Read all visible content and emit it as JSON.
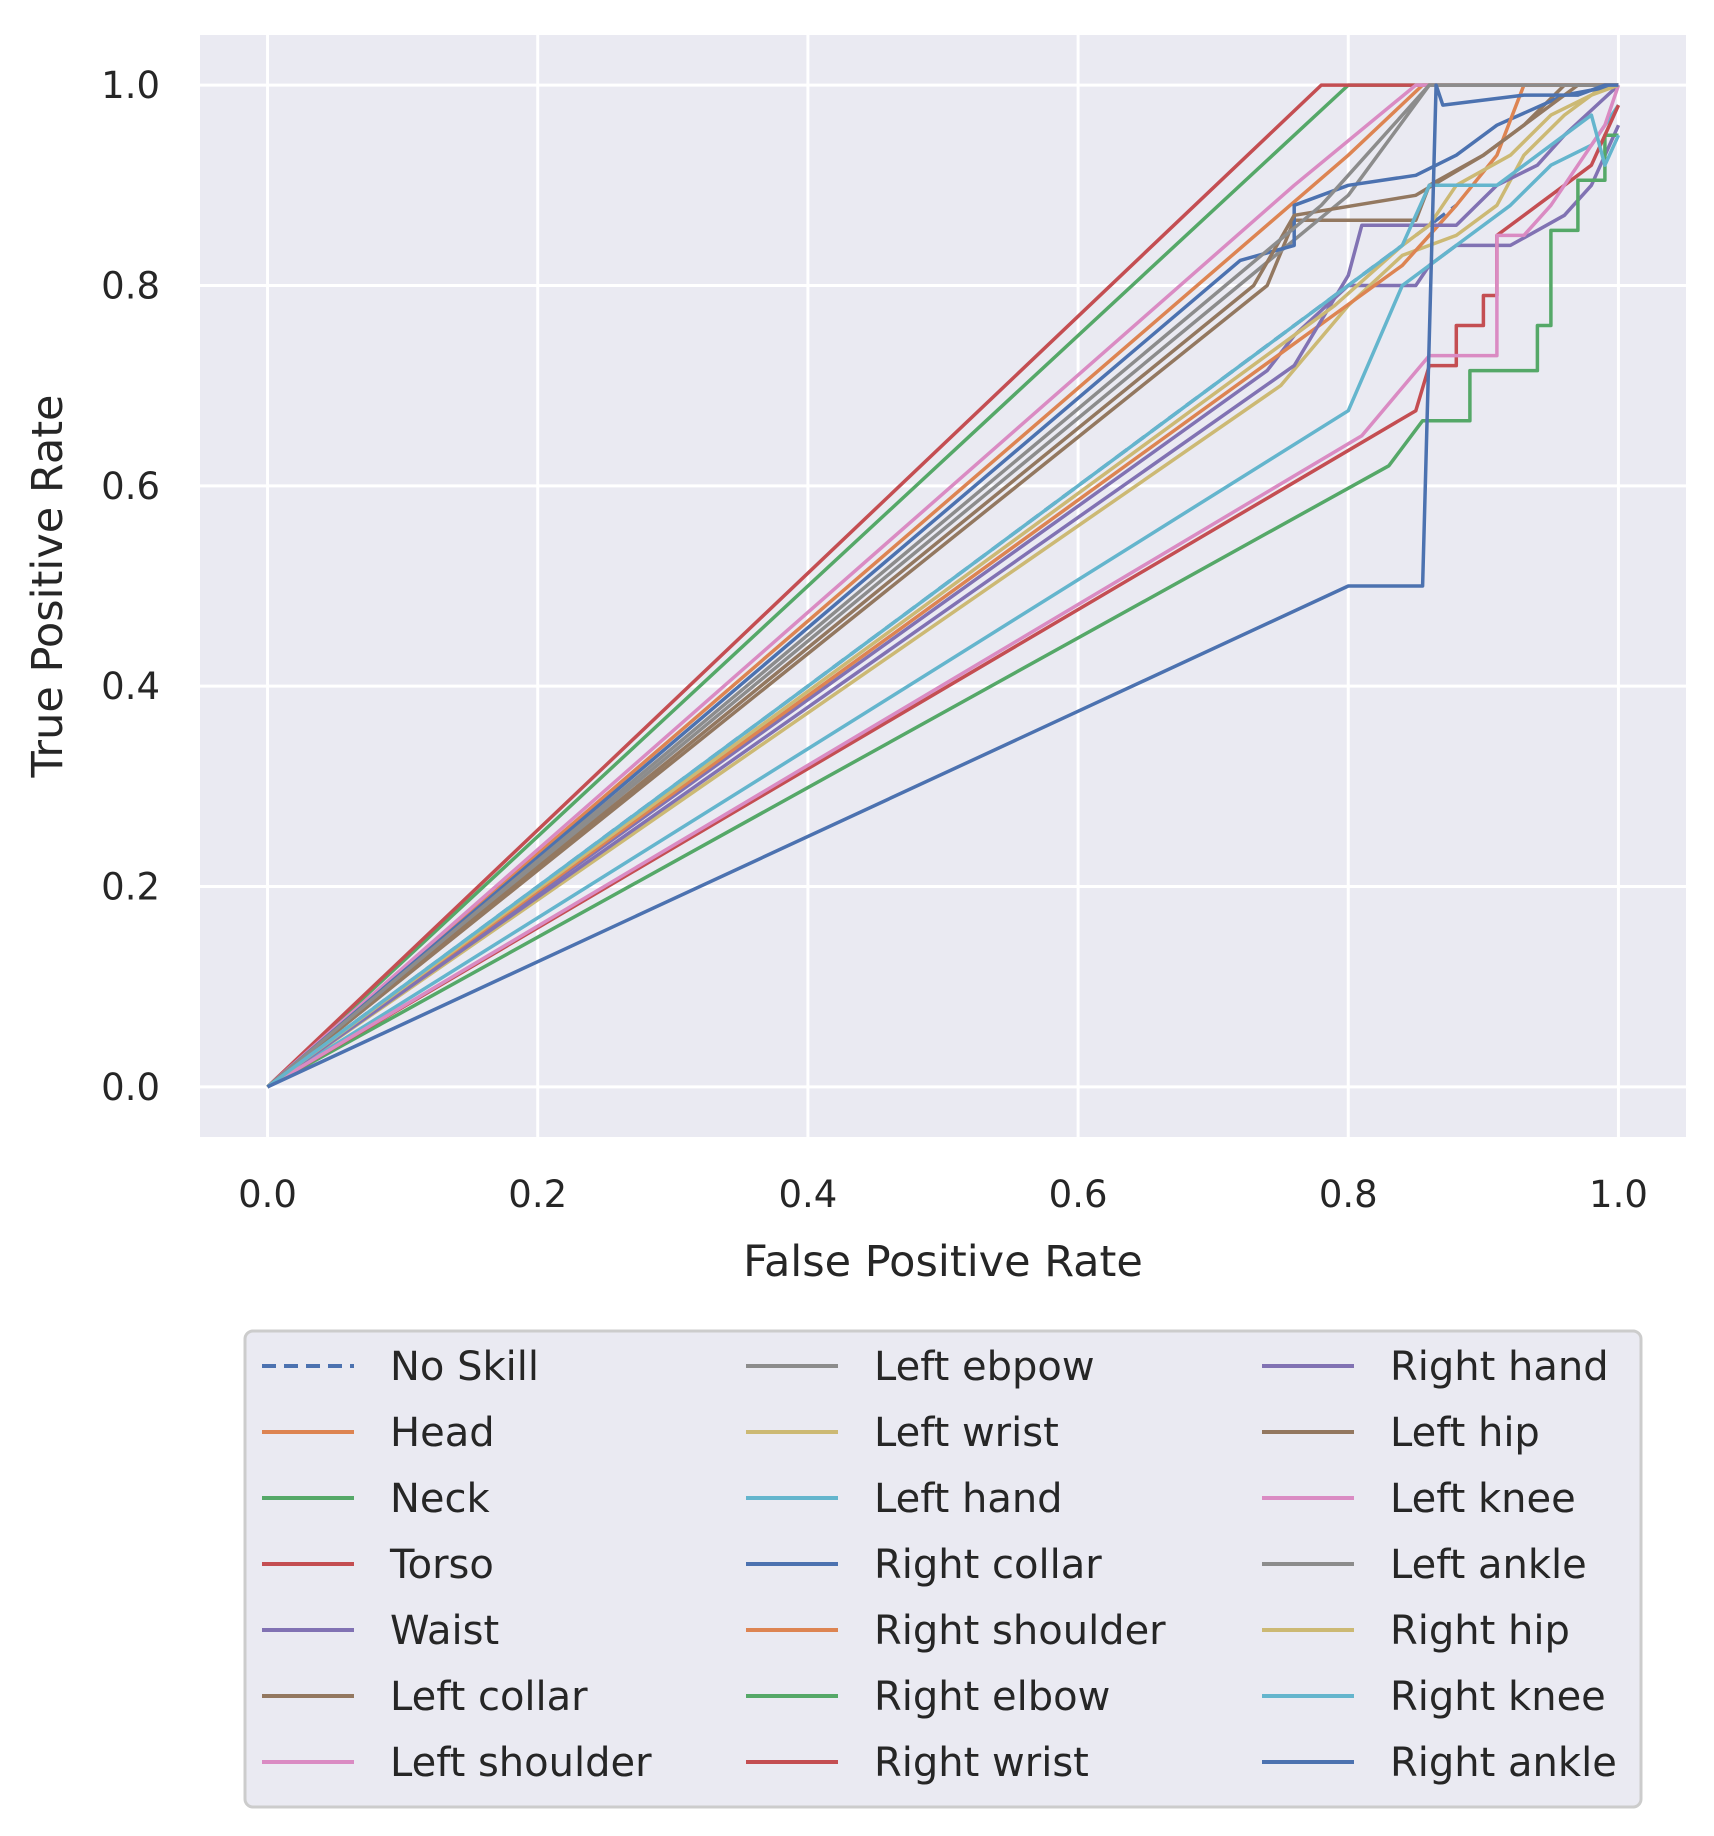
{
  "chart_data": {
    "type": "line",
    "title": "",
    "xlabel": "False Positive Rate",
    "ylabel": "True Positive Rate",
    "xlim": [
      -0.05,
      1.05
    ],
    "ylim": [
      -0.05,
      1.05
    ],
    "xticks": [
      "0.0",
      "0.2",
      "0.4",
      "0.6",
      "0.8",
      "1.0"
    ],
    "yticks": [
      "0.0",
      "0.2",
      "0.4",
      "0.6",
      "0.8",
      "1.0"
    ],
    "grid": true,
    "legend_position": "below plot, 3 columns",
    "series": [
      {
        "name": "No Skill",
        "color": "#4c72b0",
        "dashed": true,
        "points": [
          [
            0,
            0
          ],
          [
            0.88,
            0.88
          ]
        ]
      },
      {
        "name": "Head",
        "color": "#dd8452",
        "points": [
          [
            0,
            0
          ],
          [
            0.8,
            0.93
          ],
          [
            0.855,
            1.0
          ],
          [
            1.0,
            1.0
          ]
        ]
      },
      {
        "name": "Neck",
        "color": "#55a868",
        "points": [
          [
            0,
            0
          ],
          [
            0.8,
            1.0
          ],
          [
            1.0,
            1.0
          ]
        ]
      },
      {
        "name": "Torso",
        "color": "#c44e52",
        "points": [
          [
            0,
            0
          ],
          [
            0.78,
            1.0
          ],
          [
            1.0,
            1.0
          ]
        ]
      },
      {
        "name": "Waist",
        "color": "#8172b3",
        "points": [
          [
            0,
            0
          ],
          [
            0.74,
            0.715
          ],
          [
            0.76,
            0.75
          ],
          [
            0.8,
            0.8
          ],
          [
            0.85,
            0.8
          ],
          [
            0.86,
            0.82
          ],
          [
            0.88,
            0.84
          ],
          [
            0.92,
            0.84
          ],
          [
            0.96,
            0.87
          ],
          [
            0.98,
            0.9
          ],
          [
            1.0,
            0.96
          ]
        ]
      },
      {
        "name": "Left collar",
        "color": "#937860",
        "points": [
          [
            0,
            0
          ],
          [
            0.74,
            0.8
          ],
          [
            0.76,
            0.865
          ],
          [
            0.85,
            0.865
          ],
          [
            0.86,
            0.9
          ],
          [
            0.9,
            0.93
          ],
          [
            0.93,
            0.96
          ],
          [
            0.96,
            1.0
          ],
          [
            1.0,
            1.0
          ]
        ]
      },
      {
        "name": "Left shoulder",
        "color": "#da8bc3",
        "points": [
          [
            0,
            0
          ],
          [
            0.76,
            0.9
          ],
          [
            0.85,
            1.0
          ],
          [
            1.0,
            1.0
          ]
        ]
      },
      {
        "name": "Left ebpow",
        "color": "#8c8c8c",
        "points": [
          [
            0,
            0
          ],
          [
            0.8,
            0.89
          ],
          [
            0.86,
            1.0
          ],
          [
            1.0,
            1.0
          ]
        ]
      },
      {
        "name": "Left wrist",
        "color": "#ccb974",
        "points": [
          [
            0,
            0
          ],
          [
            0.75,
            0.7
          ],
          [
            0.8,
            0.78
          ],
          [
            0.84,
            0.83
          ],
          [
            0.88,
            0.85
          ],
          [
            0.91,
            0.88
          ],
          [
            0.93,
            0.93
          ],
          [
            0.96,
            0.97
          ],
          [
            0.99,
            1.0
          ],
          [
            1.0,
            1.0
          ]
        ]
      },
      {
        "name": "Left hand",
        "color": "#64b5cd",
        "points": [
          [
            0,
            0
          ],
          [
            0.8,
            0.675
          ],
          [
            0.84,
            0.8
          ],
          [
            0.88,
            0.84
          ],
          [
            0.92,
            0.88
          ],
          [
            0.95,
            0.92
          ],
          [
            0.98,
            0.94
          ],
          [
            1.0,
            0.98
          ]
        ]
      },
      {
        "name": "Right collar",
        "color": "#4c72b0",
        "points": [
          [
            0,
            0
          ],
          [
            0.72,
            0.825
          ],
          [
            0.76,
            0.84
          ],
          [
            0.76,
            0.88
          ],
          [
            0.8,
            0.9
          ],
          [
            0.85,
            0.91
          ],
          [
            0.88,
            0.93
          ],
          [
            0.91,
            0.96
          ],
          [
            0.96,
            0.99
          ],
          [
            1.0,
            1.0
          ]
        ]
      },
      {
        "name": "Right shoulder",
        "color": "#dd8452",
        "points": [
          [
            0,
            0
          ],
          [
            0.84,
            0.82
          ],
          [
            0.86,
            0.85
          ],
          [
            0.88,
            0.88
          ],
          [
            0.91,
            0.93
          ],
          [
            0.93,
            1.0
          ],
          [
            1.0,
            1.0
          ]
        ]
      },
      {
        "name": "Right elbow",
        "color": "#55a868",
        "points": [
          [
            0,
            0
          ],
          [
            0.83,
            0.62
          ],
          [
            0.855,
            0.665
          ],
          [
            0.89,
            0.665
          ],
          [
            0.89,
            0.715
          ],
          [
            0.94,
            0.715
          ],
          [
            0.94,
            0.76
          ],
          [
            0.95,
            0.76
          ],
          [
            0.95,
            0.855
          ],
          [
            0.97,
            0.855
          ],
          [
            0.97,
            0.905
          ],
          [
            0.99,
            0.905
          ],
          [
            0.99,
            0.95
          ],
          [
            1.0,
            0.95
          ]
        ]
      },
      {
        "name": "Right wrist",
        "color": "#c44e52",
        "points": [
          [
            0,
            0
          ],
          [
            0.85,
            0.675
          ],
          [
            0.86,
            0.72
          ],
          [
            0.88,
            0.72
          ],
          [
            0.88,
            0.76
          ],
          [
            0.9,
            0.76
          ],
          [
            0.9,
            0.79
          ],
          [
            0.91,
            0.79
          ],
          [
            0.91,
            0.85
          ],
          [
            0.94,
            0.88
          ],
          [
            0.96,
            0.9
          ],
          [
            0.98,
            0.92
          ],
          [
            1.0,
            0.98
          ]
        ]
      },
      {
        "name": "Right hand",
        "color": "#8172b3",
        "points": [
          [
            0,
            0
          ],
          [
            0.76,
            0.72
          ],
          [
            0.8,
            0.81
          ],
          [
            0.81,
            0.86
          ],
          [
            0.86,
            0.86
          ],
          [
            0.88,
            0.86
          ],
          [
            0.91,
            0.9
          ],
          [
            0.94,
            0.92
          ],
          [
            0.96,
            0.95
          ],
          [
            1.0,
            1.0
          ]
        ]
      },
      {
        "name": "Left hip",
        "color": "#937860",
        "points": [
          [
            0,
            0
          ],
          [
            0.73,
            0.8
          ],
          [
            0.76,
            0.87
          ],
          [
            0.85,
            0.89
          ],
          [
            0.9,
            0.93
          ],
          [
            0.94,
            0.97
          ],
          [
            0.97,
            1.0
          ],
          [
            1.0,
            1.0
          ]
        ]
      },
      {
        "name": "Left knee",
        "color": "#da8bc3",
        "points": [
          [
            0,
            0
          ],
          [
            0.81,
            0.65
          ],
          [
            0.86,
            0.73
          ],
          [
            0.91,
            0.73
          ],
          [
            0.91,
            0.85
          ],
          [
            0.93,
            0.85
          ],
          [
            0.95,
            0.88
          ],
          [
            0.97,
            0.92
          ],
          [
            0.99,
            0.96
          ],
          [
            1.0,
            1.0
          ]
        ]
      },
      {
        "name": "Left ankle",
        "color": "#8c8c8c",
        "points": [
          [
            0,
            0
          ],
          [
            0.78,
            0.88
          ],
          [
            0.86,
            1.0
          ],
          [
            1.0,
            1.0
          ]
        ]
      },
      {
        "name": "Right hip",
        "color": "#ccb974",
        "points": [
          [
            0,
            0
          ],
          [
            0.79,
            0.78
          ],
          [
            0.84,
            0.84
          ],
          [
            0.86,
            0.86
          ],
          [
            0.88,
            0.9
          ],
          [
            0.92,
            0.93
          ],
          [
            0.95,
            0.97
          ],
          [
            0.98,
            0.99
          ],
          [
            1.0,
            1.0
          ]
        ]
      },
      {
        "name": "Right knee",
        "color": "#64b5cd",
        "points": [
          [
            0,
            0
          ],
          [
            0.84,
            0.84
          ],
          [
            0.86,
            0.9
          ],
          [
            0.91,
            0.9
          ],
          [
            0.95,
            0.94
          ],
          [
            0.98,
            0.97
          ],
          [
            0.99,
            0.92
          ],
          [
            1.0,
            0.95
          ]
        ]
      },
      {
        "name": "Right ankle",
        "color": "#4c72b0",
        "points": [
          [
            0,
            0
          ],
          [
            0.8,
            0.5
          ],
          [
            0.855,
            0.5
          ],
          [
            0.865,
            1.0
          ],
          [
            0.87,
            0.98
          ],
          [
            0.93,
            0.99
          ],
          [
            0.97,
            0.99
          ],
          [
            0.99,
            1.0
          ],
          [
            1.0,
            1.0
          ]
        ]
      }
    ]
  }
}
